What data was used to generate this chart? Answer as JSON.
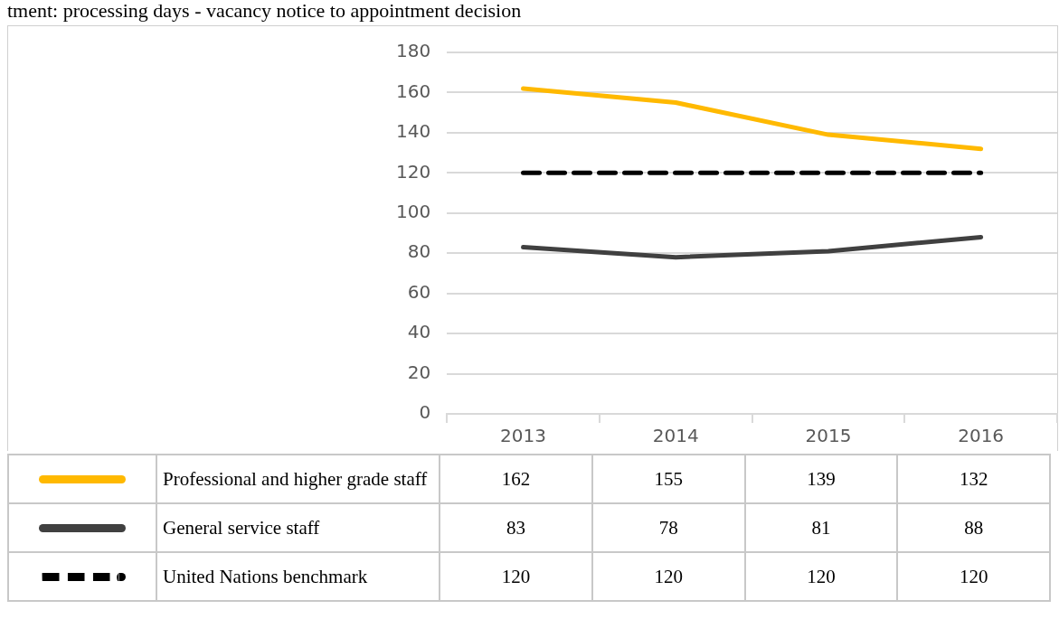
{
  "chart_data": {
    "type": "line",
    "title": "tment: processing days - vacancy notice to appointment decision",
    "categories": [
      "2013",
      "2014",
      "2015",
      "2016"
    ],
    "series": [
      {
        "name": "Professional and higher grade staff",
        "color": "#ffb900",
        "values": [
          162,
          155,
          139,
          132
        ]
      },
      {
        "name": "General service staff",
        "color": "#404040",
        "values": [
          83,
          78,
          81,
          88
        ]
      },
      {
        "name": "United Nations benchmark",
        "color": "#000000",
        "values": [
          120,
          120,
          120,
          120
        ],
        "line_style": "dashed"
      }
    ],
    "ylim": [
      0,
      180
    ],
    "yticks": [
      0,
      20,
      40,
      60,
      80,
      100,
      120,
      140,
      160,
      180
    ],
    "grid": "y",
    "legend": "bottom",
    "data_labels": true,
    "marker": "none"
  }
}
